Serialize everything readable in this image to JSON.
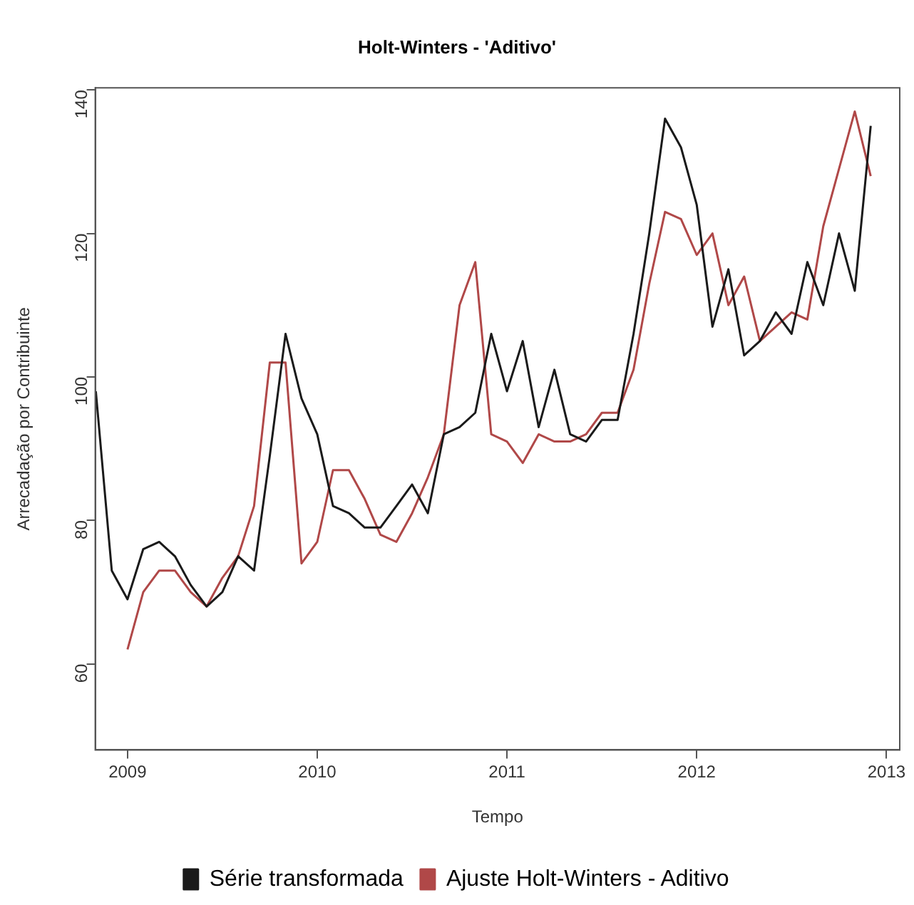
{
  "chart_data": {
    "type": "line",
    "title": "Holt-Winters - 'Aditivo'",
    "xlabel": "Tempo",
    "ylabel": "Arrecadação por Contribuinte",
    "xlim": [
      2008.83,
      2013.07
    ],
    "xticks": [
      2009,
      2010,
      2011,
      2012,
      2013
    ],
    "ylim": [
      48,
      140.3
    ],
    "yticks": [
      60,
      80,
      100,
      120,
      140
    ],
    "grid": false,
    "legend": "bottom",
    "marker": "none",
    "line_style": "solid",
    "series": [
      {
        "name": "Série transformada",
        "color": "#1a1a1a",
        "x": [
          2008.833,
          2008.917,
          2009.0,
          2009.083,
          2009.167,
          2009.25,
          2009.333,
          2009.417,
          2009.5,
          2009.583,
          2009.667,
          2009.75,
          2009.833,
          2009.917,
          2010.0,
          2010.083,
          2010.167,
          2010.25,
          2010.333,
          2010.417,
          2010.5,
          2010.583,
          2010.667,
          2010.75,
          2010.833,
          2010.917,
          2011.0,
          2011.083,
          2011.167,
          2011.25,
          2011.333,
          2011.417,
          2011.5,
          2011.583,
          2011.667,
          2011.75,
          2011.833,
          2011.917,
          2012.0,
          2012.083,
          2012.167,
          2012.25,
          2012.333,
          2012.417,
          2012.5,
          2012.583,
          2012.667,
          2012.75,
          2012.833,
          2012.917
        ],
        "values": [
          98,
          73,
          69,
          76,
          77,
          75,
          71,
          68,
          70,
          75,
          73,
          89,
          106,
          97,
          92,
          82,
          81,
          79,
          79,
          82,
          85,
          81,
          92,
          93,
          95,
          106,
          98,
          105,
          93,
          101,
          92,
          91,
          94,
          94,
          106,
          120,
          136,
          132,
          124,
          107,
          115,
          103,
          105,
          109,
          106,
          116,
          110,
          120,
          112,
          135
        ]
      },
      {
        "name": "Ajuste Holt-Winters - Aditivo",
        "color": "#b04848",
        "x": [
          2009.0,
          2009.083,
          2009.167,
          2009.25,
          2009.333,
          2009.417,
          2009.5,
          2009.583,
          2009.667,
          2009.75,
          2009.833,
          2009.917,
          2010.0,
          2010.083,
          2010.167,
          2010.25,
          2010.333,
          2010.417,
          2010.5,
          2010.583,
          2010.667,
          2010.75,
          2010.833,
          2010.917,
          2011.0,
          2011.083,
          2011.167,
          2011.25,
          2011.333,
          2011.417,
          2011.5,
          2011.583,
          2011.667,
          2011.75,
          2011.833,
          2011.917,
          2012.0,
          2012.083,
          2012.167,
          2012.25,
          2012.333,
          2012.417,
          2012.5,
          2012.583,
          2012.667,
          2012.75,
          2012.833,
          2012.917
        ],
        "values": [
          62,
          70,
          73,
          73,
          70,
          68,
          72,
          75,
          82,
          102,
          102,
          74,
          77,
          87,
          87,
          83,
          78,
          77,
          81,
          86,
          92,
          110,
          116,
          92,
          91,
          88,
          92,
          91,
          91,
          92,
          95,
          95,
          101,
          113,
          123,
          122,
          117,
          120,
          110,
          114,
          105,
          107,
          109,
          108,
          121,
          129,
          137,
          128
        ]
      }
    ]
  }
}
